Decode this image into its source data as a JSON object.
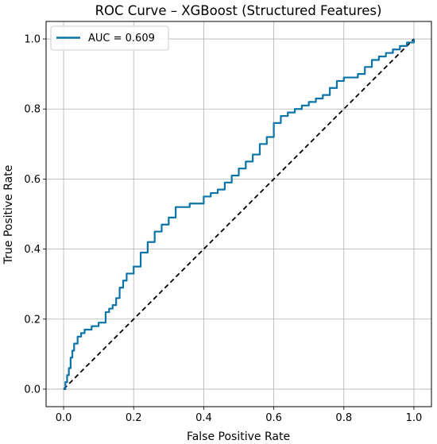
{
  "chart_data": {
    "type": "line",
    "title": "ROC Curve – XGBoost (Structured Features)",
    "xlabel": "False Positive Rate",
    "ylabel": "True Positive Rate",
    "xlim": [
      -0.05,
      1.05
    ],
    "ylim": [
      -0.05,
      1.05
    ],
    "xticks": [
      "0.0",
      "0.2",
      "0.4",
      "0.6",
      "0.8",
      "1.0"
    ],
    "yticks": [
      "0.0",
      "0.2",
      "0.4",
      "0.6",
      "0.8",
      "1.0"
    ],
    "grid": true,
    "legend_position": "top-left",
    "series": [
      {
        "name": "AUC = 0.609",
        "color": "#0a74a8",
        "style": "solid",
        "x": [
          0.0,
          0.005,
          0.01,
          0.015,
          0.02,
          0.025,
          0.03,
          0.04,
          0.05,
          0.06,
          0.08,
          0.1,
          0.12,
          0.13,
          0.14,
          0.15,
          0.16,
          0.17,
          0.18,
          0.2,
          0.22,
          0.24,
          0.26,
          0.28,
          0.3,
          0.32,
          0.34,
          0.36,
          0.38,
          0.4,
          0.42,
          0.44,
          0.46,
          0.48,
          0.5,
          0.52,
          0.54,
          0.56,
          0.58,
          0.6,
          0.62,
          0.64,
          0.66,
          0.68,
          0.7,
          0.72,
          0.74,
          0.76,
          0.78,
          0.8,
          0.82,
          0.84,
          0.86,
          0.88,
          0.9,
          0.92,
          0.94,
          0.96,
          0.98,
          1.0
        ],
        "y": [
          0.0,
          0.02,
          0.04,
          0.06,
          0.09,
          0.11,
          0.13,
          0.15,
          0.16,
          0.17,
          0.18,
          0.19,
          0.22,
          0.23,
          0.24,
          0.26,
          0.29,
          0.31,
          0.33,
          0.35,
          0.39,
          0.42,
          0.45,
          0.47,
          0.49,
          0.52,
          0.52,
          0.53,
          0.53,
          0.55,
          0.56,
          0.57,
          0.59,
          0.61,
          0.63,
          0.65,
          0.67,
          0.7,
          0.72,
          0.76,
          0.78,
          0.79,
          0.8,
          0.81,
          0.82,
          0.83,
          0.84,
          0.86,
          0.88,
          0.89,
          0.89,
          0.9,
          0.92,
          0.94,
          0.95,
          0.96,
          0.97,
          0.98,
          0.99,
          1.0
        ]
      },
      {
        "color": "#000000",
        "style": "dashed",
        "x": [
          0.0,
          1.0
        ],
        "y": [
          0.0,
          1.0
        ]
      }
    ]
  }
}
